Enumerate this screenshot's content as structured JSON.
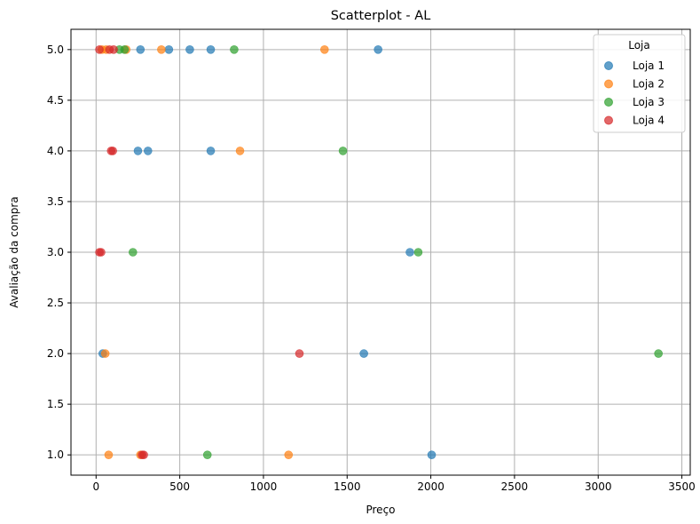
{
  "chart_data": {
    "type": "scatter",
    "title": "Scatterplot - AL",
    "xlabel": "Preço",
    "ylabel": "Avaliação da compra",
    "xlim": [
      -150,
      3550
    ],
    "ylim": [
      0.8,
      5.2
    ],
    "xticks": [
      0,
      500,
      1000,
      1500,
      2000,
      2500,
      3000,
      3500
    ],
    "xtick_labels": [
      "0",
      "500",
      "1000",
      "1500",
      "2000",
      "2500",
      "3000",
      "3500"
    ],
    "yticks": [
      1.0,
      1.5,
      2.0,
      2.5,
      3.0,
      3.5,
      4.0,
      4.5,
      5.0
    ],
    "ytick_labels": [
      "1.0",
      "1.5",
      "2.0",
      "2.5",
      "3.0",
      "3.5",
      "4.0",
      "4.5",
      "5.0"
    ],
    "grid": true,
    "legend": {
      "title": "Loja",
      "placement": "top-right"
    },
    "series": [
      {
        "name": "Loja 1",
        "color": "#1f77b4",
        "points": [
          [
            265,
            5
          ],
          [
            435,
            5
          ],
          [
            560,
            5
          ],
          [
            685,
            5
          ],
          [
            1685,
            5
          ],
          [
            250,
            4
          ],
          [
            310,
            4
          ],
          [
            685,
            4
          ],
          [
            1875,
            3
          ],
          [
            40,
            2
          ],
          [
            1600,
            2
          ],
          [
            2005,
            1
          ]
        ]
      },
      {
        "name": "Loja 2",
        "color": "#ff7f0e",
        "points": [
          [
            35,
            5
          ],
          [
            60,
            5
          ],
          [
            180,
            5
          ],
          [
            390,
            5
          ],
          [
            1365,
            5
          ],
          [
            860,
            4
          ],
          [
            55,
            2
          ],
          [
            75,
            1
          ],
          [
            265,
            1
          ],
          [
            1150,
            1
          ]
        ]
      },
      {
        "name": "Loja 3",
        "color": "#2ca02c",
        "points": [
          [
            140,
            5
          ],
          [
            170,
            5
          ],
          [
            825,
            5
          ],
          [
            1475,
            4
          ],
          [
            220,
            3
          ],
          [
            1925,
            3
          ],
          [
            3360,
            2
          ],
          [
            665,
            1
          ]
        ]
      },
      {
        "name": "Loja 4",
        "color": "#d62728",
        "points": [
          [
            20,
            5
          ],
          [
            80,
            5
          ],
          [
            105,
            5
          ],
          [
            90,
            4
          ],
          [
            100,
            4
          ],
          [
            20,
            3
          ],
          [
            30,
            3
          ],
          [
            1215,
            2
          ],
          [
            275,
            1
          ],
          [
            285,
            1
          ]
        ]
      }
    ]
  }
}
